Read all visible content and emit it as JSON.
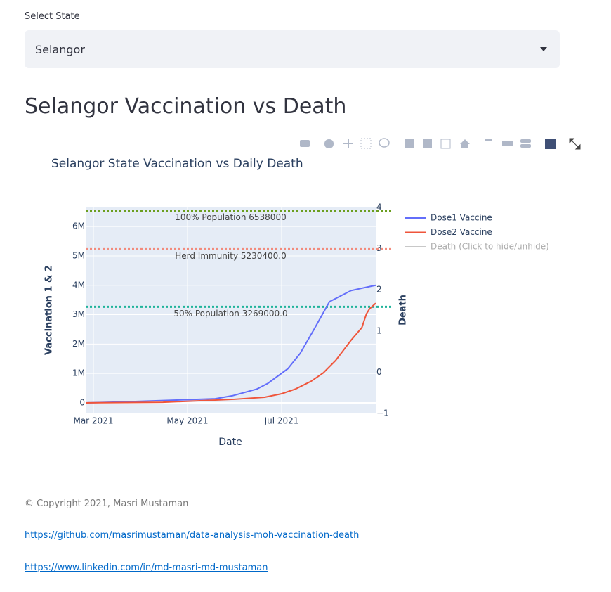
{
  "select": {
    "label": "Select State",
    "value": "Selangor"
  },
  "heading": "Selangor Vaccination vs Death",
  "chart": {
    "type": "line",
    "title": "Selangor State Vaccination vs Daily Death",
    "x_label": "Date",
    "y_label": "Vaccination 1 & 2",
    "y2_label": "Death",
    "xlim": [
      "2021-02-24",
      "2021-08-31"
    ],
    "xticks": [
      {
        "value": "2021-03-01",
        "label": "Mar 2021"
      },
      {
        "value": "2021-05-01",
        "label": "May 2021"
      },
      {
        "value": "2021-07-01",
        "label": "Jul 2021"
      }
    ],
    "ylim": [
      -360000,
      6650000
    ],
    "yticks": [
      0,
      {
        "value": 1000000,
        "label": "1M"
      },
      {
        "value": 2000000,
        "label": "2M"
      },
      {
        "value": 3000000,
        "label": "3M"
      },
      {
        "value": 4000000,
        "label": "4M"
      },
      {
        "value": 5000000,
        "label": "5M"
      },
      {
        "value": 6000000,
        "label": "6M"
      }
    ],
    "y2lim": [
      -1,
      4
    ],
    "y2ticks": [
      {
        "value": -1,
        "label": "−1"
      },
      0,
      1,
      2,
      3,
      4
    ],
    "grid": true,
    "series": [
      {
        "name": "Dose1 Vaccine",
        "color": "#636efa",
        "x": [
          "2021-02-24",
          "2021-03-18",
          "2021-05-19",
          "2021-05-30",
          "2021-06-15",
          "2021-06-22",
          "2021-07-05",
          "2021-07-13",
          "2021-07-22",
          "2021-08-01",
          "2021-08-15",
          "2021-08-29",
          "2021-08-31"
        ],
        "values": [
          0,
          30000,
          140000,
          240000,
          470000,
          660000,
          1160000,
          1680000,
          2500000,
          3440000,
          3820000,
          3980000,
          4000000
        ]
      },
      {
        "name": "Dose2 Vaccine",
        "color": "#ef553b",
        "x": [
          "2021-02-24",
          "2021-04-15",
          "2021-05-31",
          "2021-06-20",
          "2021-07-01",
          "2021-07-10",
          "2021-07-20",
          "2021-07-28",
          "2021-08-05",
          "2021-08-15",
          "2021-08-22",
          "2021-08-25",
          "2021-08-27",
          "2021-08-31"
        ],
        "values": [
          0,
          20000,
          120000,
          190000,
          310000,
          470000,
          730000,
          1020000,
          1440000,
          2130000,
          2560000,
          3030000,
          3200000,
          3390000
        ]
      },
      {
        "name": "Death (Click to hide/unhide)",
        "color": "#c8c8c8",
        "axis": "y2",
        "hidden": true,
        "x": [],
        "values": []
      }
    ],
    "hlines": [
      {
        "value": 6538000,
        "label": "100% Population 6538000",
        "color": "#6b9e1f"
      },
      {
        "value": 5230400,
        "label": "Herd Immunity 5230400.0",
        "color": "#f28b7d"
      },
      {
        "value": 3269000,
        "label": "50% Population 3269000.0",
        "color": "#1fb39a"
      }
    ]
  },
  "footer": {
    "copyright": "© Copyright 2021, Masri Mustaman",
    "links": [
      "https://github.com/masrimustaman/data-analysis-moh-vaccination-death",
      "https://www.linkedin.com/in/md-masri-md-mustaman"
    ]
  }
}
